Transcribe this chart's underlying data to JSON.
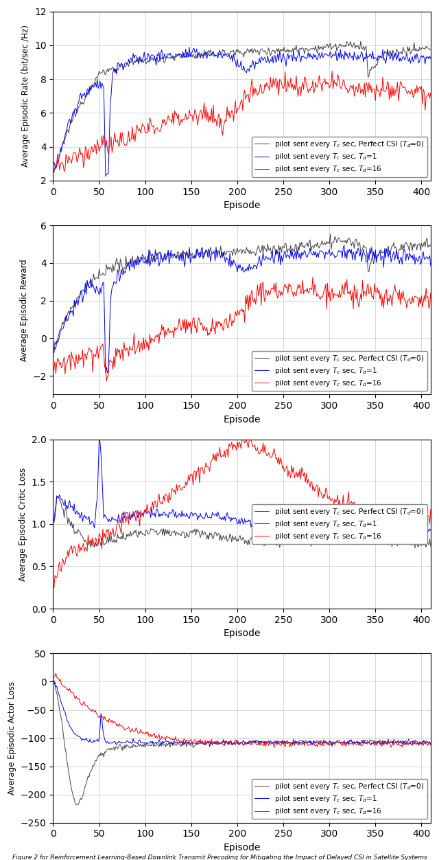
{
  "n_episodes": 410,
  "colors": {
    "black": "#000000",
    "blue": "#0000FF",
    "red": "#FF0000",
    "dark_gray": "#404040"
  },
  "subplot1": {
    "ylabel": "Average Episodic Rate (bit/sec./Hz)",
    "xlabel": "Episode",
    "ylim": [
      2,
      12
    ],
    "yticks": [
      2,
      4,
      6,
      8,
      10,
      12
    ]
  },
  "subplot2": {
    "ylabel": "Average Episodic Reward",
    "xlabel": "Episode",
    "ylim": [
      -3,
      6
    ],
    "yticks": [
      -2,
      0,
      2,
      4,
      6
    ]
  },
  "subplot3": {
    "ylabel": "Average Episodic Critic Loss",
    "xlabel": "Episode",
    "ylim": [
      0,
      2
    ],
    "yticks": [
      0,
      0.5,
      1.0,
      1.5,
      2.0
    ]
  },
  "subplot4": {
    "ylabel": "Average Episodic Actor Loss",
    "xlabel": "Episode",
    "ylim": [
      -250,
      50
    ],
    "yticks": [
      -250,
      -200,
      -150,
      -100,
      -50,
      0,
      50
    ]
  },
  "legend_labels": [
    "pilot sent every $T_c$ sec, Perfect CSI ($T_d$=0)",
    "pilot sent every $T_c$ sec, $T_d$=1",
    "pilot sent every $T_c$ sec, $T_d$=16"
  ]
}
